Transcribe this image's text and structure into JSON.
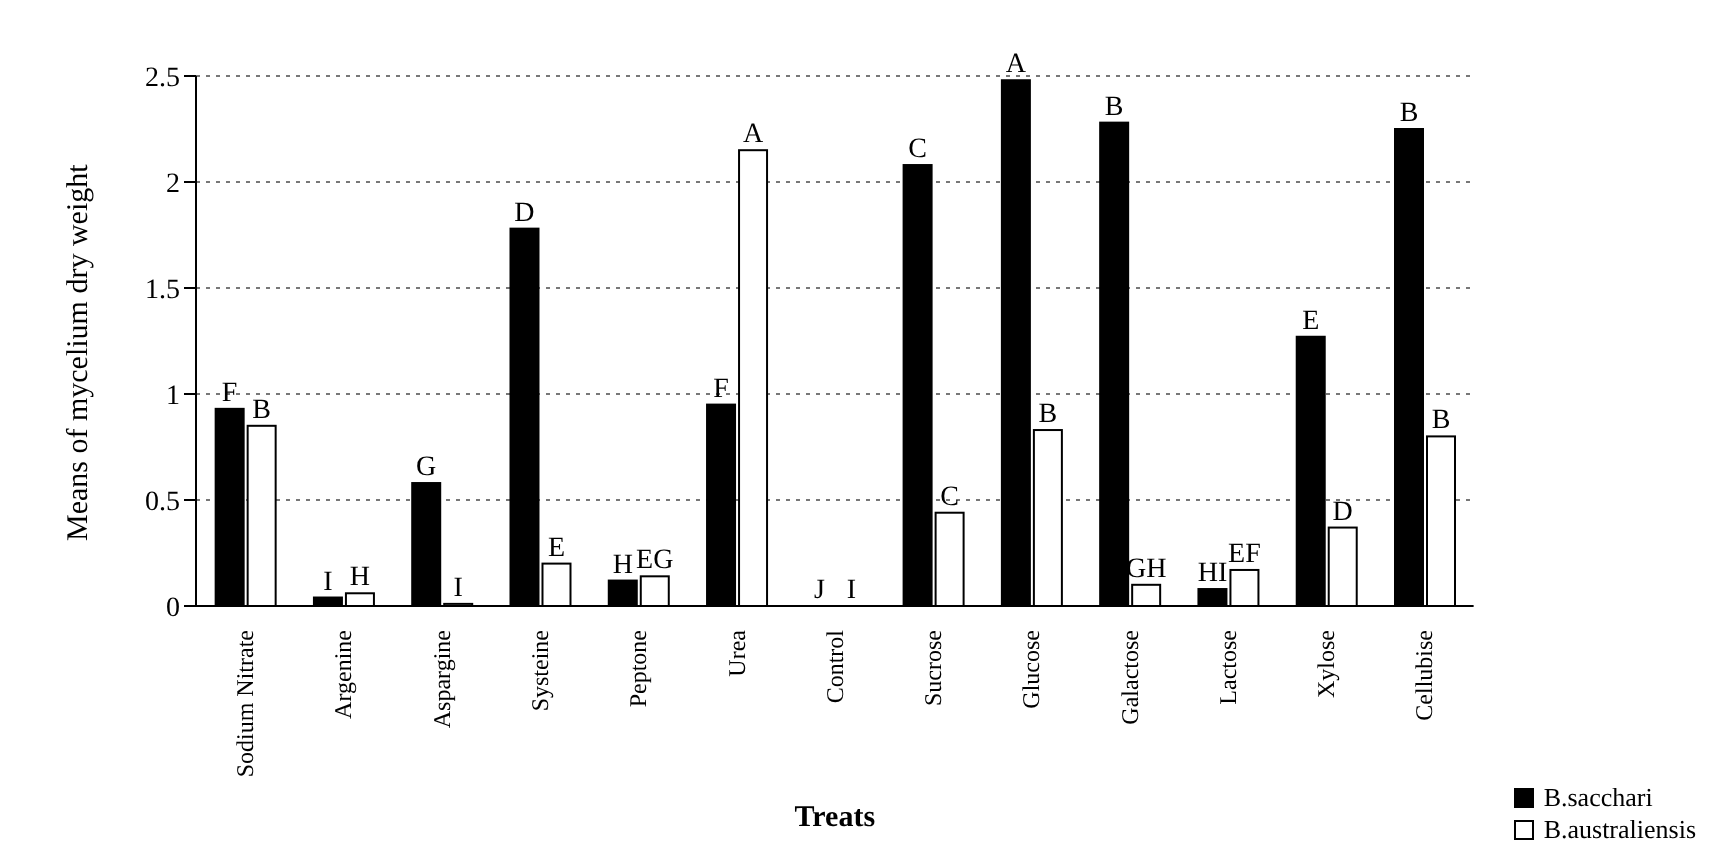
{
  "chart_data": {
    "type": "bar",
    "xlabel": "Treats",
    "ylabel": "Means of mycelium dry weight",
    "categories": [
      "Sodium Nitrate",
      "Argenine",
      "Aspargine",
      "Systeine",
      "Peptone",
      "Urea",
      "Control",
      "Sucrose",
      "Glucose",
      "Galactose",
      "Lactose",
      "Xylose",
      "Cellubise"
    ],
    "series": [
      {
        "name": "B.sacchari",
        "color": "#000000",
        "values": [
          0.93,
          0.04,
          0.58,
          1.78,
          0.12,
          0.95,
          0,
          2.08,
          2.48,
          2.28,
          0.08,
          1.27,
          2.25
        ],
        "value_labels": [
          "F",
          "I",
          "G",
          "D",
          "H",
          "F",
          "J",
          "C",
          "A",
          "B",
          "HI",
          "E",
          "B"
        ]
      },
      {
        "name": "B.australiensis",
        "color": "#ffffff",
        "values": [
          0.85,
          0.06,
          0.01,
          0.2,
          0.14,
          2.15,
          0,
          0.44,
          0.83,
          0.1,
          0.17,
          0.37,
          0.8
        ],
        "value_labels": [
          "B",
          "H",
          "I",
          "E",
          "EG",
          "A",
          "I",
          "C",
          "B",
          "GH",
          "EF",
          "D",
          "B"
        ]
      }
    ],
    "ylim": [
      0,
      2.5
    ],
    "yticks": [
      0,
      0.5,
      1,
      1.5,
      2,
      2.5
    ],
    "grid": "y",
    "legend": "bottom right"
  }
}
